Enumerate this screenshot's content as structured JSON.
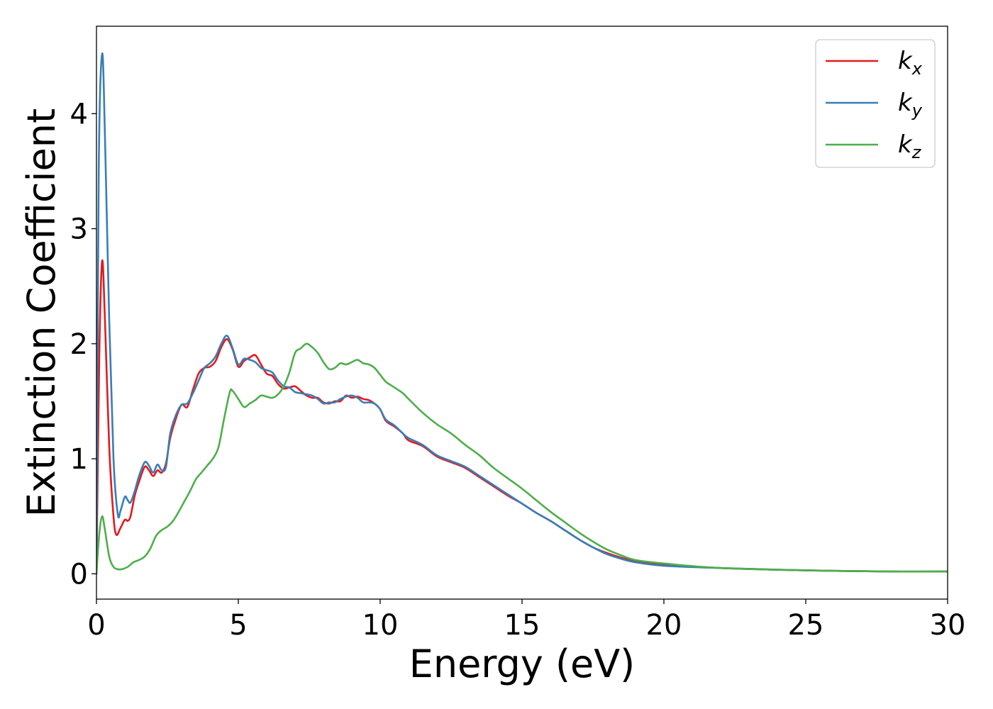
{
  "chart_data": {
    "type": "line",
    "title": "",
    "xlabel": "Energy (eV)",
    "ylabel": "Extinction Coefficient",
    "xlim": [
      0,
      30
    ],
    "ylim": [
      -0.22,
      4.76
    ],
    "xticks": [
      0,
      5,
      10,
      15,
      20,
      25,
      30
    ],
    "yticks": [
      0,
      1,
      2,
      3,
      4
    ],
    "grid": false,
    "legend_position": "top-right",
    "series": [
      {
        "name": "k_x",
        "legend_base": "k",
        "legend_sub": "x",
        "color": "#e41a1c",
        "points": [
          [
            0,
            0
          ],
          [
            0.1,
            1.9
          ],
          [
            0.2,
            2.72
          ],
          [
            0.3,
            2.2
          ],
          [
            0.45,
            1.1
          ],
          [
            0.6,
            0.5
          ],
          [
            0.7,
            0.34
          ],
          [
            0.85,
            0.4
          ],
          [
            1.0,
            0.47
          ],
          [
            1.1,
            0.46
          ],
          [
            1.2,
            0.5
          ],
          [
            1.35,
            0.68
          ],
          [
            1.5,
            0.8
          ],
          [
            1.7,
            0.93
          ],
          [
            1.85,
            0.9
          ],
          [
            2.0,
            0.85
          ],
          [
            2.15,
            0.9
          ],
          [
            2.3,
            0.88
          ],
          [
            2.45,
            0.96
          ],
          [
            2.6,
            1.18
          ],
          [
            2.8,
            1.35
          ],
          [
            3.0,
            1.47
          ],
          [
            3.2,
            1.45
          ],
          [
            3.4,
            1.6
          ],
          [
            3.6,
            1.74
          ],
          [
            3.8,
            1.79
          ],
          [
            4.0,
            1.8
          ],
          [
            4.2,
            1.85
          ],
          [
            4.4,
            1.97
          ],
          [
            4.6,
            2.04
          ],
          [
            4.8,
            1.95
          ],
          [
            5.0,
            1.8
          ],
          [
            5.2,
            1.85
          ],
          [
            5.4,
            1.88
          ],
          [
            5.6,
            1.9
          ],
          [
            5.8,
            1.82
          ],
          [
            6.0,
            1.74
          ],
          [
            6.2,
            1.72
          ],
          [
            6.4,
            1.65
          ],
          [
            6.6,
            1.61
          ],
          [
            6.8,
            1.62
          ],
          [
            7.0,
            1.63
          ],
          [
            7.2,
            1.59
          ],
          [
            7.4,
            1.55
          ],
          [
            7.6,
            1.53
          ],
          [
            7.8,
            1.53
          ],
          [
            8.0,
            1.49
          ],
          [
            8.2,
            1.48
          ],
          [
            8.4,
            1.5
          ],
          [
            8.6,
            1.5
          ],
          [
            8.8,
            1.55
          ],
          [
            9.0,
            1.53
          ],
          [
            9.2,
            1.54
          ],
          [
            9.4,
            1.52
          ],
          [
            9.6,
            1.51
          ],
          [
            9.8,
            1.48
          ],
          [
            10.0,
            1.43
          ],
          [
            10.2,
            1.33
          ],
          [
            10.5,
            1.28
          ],
          [
            10.8,
            1.22
          ],
          [
            11.0,
            1.16
          ],
          [
            11.5,
            1.11
          ],
          [
            12.0,
            1.02
          ],
          [
            12.5,
            0.97
          ],
          [
            13.0,
            0.92
          ],
          [
            13.5,
            0.84
          ],
          [
            14.0,
            0.76
          ],
          [
            14.5,
            0.68
          ],
          [
            15.0,
            0.61
          ],
          [
            15.5,
            0.53
          ],
          [
            16.0,
            0.46
          ],
          [
            16.5,
            0.38
          ],
          [
            17.0,
            0.3
          ],
          [
            17.5,
            0.23
          ],
          [
            18.0,
            0.18
          ],
          [
            18.5,
            0.14
          ],
          [
            19.0,
            0.11
          ],
          [
            20.0,
            0.08
          ],
          [
            22.0,
            0.05
          ],
          [
            25.0,
            0.03
          ],
          [
            28.0,
            0.02
          ],
          [
            30.0,
            0.02
          ]
        ]
      },
      {
        "name": "k_y",
        "legend_base": "k",
        "legend_sub": "y",
        "color": "#377eb8",
        "points": [
          [
            0,
            0
          ],
          [
            0.08,
            3.5
          ],
          [
            0.2,
            4.52
          ],
          [
            0.3,
            3.8
          ],
          [
            0.45,
            2.2
          ],
          [
            0.6,
            1.0
          ],
          [
            0.75,
            0.52
          ],
          [
            0.85,
            0.55
          ],
          [
            1.0,
            0.67
          ],
          [
            1.1,
            0.64
          ],
          [
            1.2,
            0.62
          ],
          [
            1.35,
            0.72
          ],
          [
            1.5,
            0.85
          ],
          [
            1.7,
            0.97
          ],
          [
            1.85,
            0.94
          ],
          [
            2.0,
            0.88
          ],
          [
            2.15,
            0.95
          ],
          [
            2.3,
            0.9
          ],
          [
            2.45,
            0.93
          ],
          [
            2.6,
            1.22
          ],
          [
            2.8,
            1.38
          ],
          [
            3.0,
            1.47
          ],
          [
            3.2,
            1.48
          ],
          [
            3.4,
            1.57
          ],
          [
            3.6,
            1.68
          ],
          [
            3.8,
            1.79
          ],
          [
            4.0,
            1.83
          ],
          [
            4.2,
            1.89
          ],
          [
            4.4,
            2.0
          ],
          [
            4.6,
            2.07
          ],
          [
            4.8,
            1.96
          ],
          [
            5.0,
            1.82
          ],
          [
            5.2,
            1.87
          ],
          [
            5.4,
            1.86
          ],
          [
            5.6,
            1.84
          ],
          [
            5.8,
            1.79
          ],
          [
            6.0,
            1.77
          ],
          [
            6.2,
            1.75
          ],
          [
            6.4,
            1.68
          ],
          [
            6.6,
            1.63
          ],
          [
            6.8,
            1.62
          ],
          [
            7.0,
            1.58
          ],
          [
            7.2,
            1.57
          ],
          [
            7.4,
            1.56
          ],
          [
            7.6,
            1.55
          ],
          [
            7.8,
            1.52
          ],
          [
            8.0,
            1.48
          ],
          [
            8.2,
            1.49
          ],
          [
            8.4,
            1.49
          ],
          [
            8.6,
            1.52
          ],
          [
            8.8,
            1.54
          ],
          [
            9.0,
            1.55
          ],
          [
            9.2,
            1.53
          ],
          [
            9.4,
            1.49
          ],
          [
            9.6,
            1.49
          ],
          [
            9.8,
            1.48
          ],
          [
            10.0,
            1.43
          ],
          [
            10.2,
            1.34
          ],
          [
            10.5,
            1.29
          ],
          [
            10.8,
            1.22
          ],
          [
            11.0,
            1.18
          ],
          [
            11.5,
            1.12
          ],
          [
            12.0,
            1.03
          ],
          [
            12.5,
            0.98
          ],
          [
            13.0,
            0.93
          ],
          [
            13.5,
            0.85
          ],
          [
            14.0,
            0.77
          ],
          [
            14.5,
            0.69
          ],
          [
            15.0,
            0.61
          ],
          [
            15.5,
            0.53
          ],
          [
            16.0,
            0.46
          ],
          [
            16.5,
            0.38
          ],
          [
            17.0,
            0.3
          ],
          [
            17.5,
            0.23
          ],
          [
            18.0,
            0.17
          ],
          [
            18.5,
            0.13
          ],
          [
            19.0,
            0.1
          ],
          [
            20.0,
            0.07
          ],
          [
            22.0,
            0.05
          ],
          [
            25.0,
            0.03
          ],
          [
            28.0,
            0.02
          ],
          [
            30.0,
            0.02
          ]
        ]
      },
      {
        "name": "k_z",
        "legend_base": "k",
        "legend_sub": "z",
        "color": "#4daf4a",
        "points": [
          [
            0,
            0
          ],
          [
            0.1,
            0.35
          ],
          [
            0.2,
            0.5
          ],
          [
            0.3,
            0.38
          ],
          [
            0.45,
            0.15
          ],
          [
            0.6,
            0.06
          ],
          [
            0.75,
            0.04
          ],
          [
            0.9,
            0.04
          ],
          [
            1.1,
            0.06
          ],
          [
            1.3,
            0.1
          ],
          [
            1.5,
            0.12
          ],
          [
            1.7,
            0.15
          ],
          [
            1.9,
            0.22
          ],
          [
            2.1,
            0.33
          ],
          [
            2.3,
            0.38
          ],
          [
            2.5,
            0.41
          ],
          [
            2.7,
            0.46
          ],
          [
            2.9,
            0.54
          ],
          [
            3.1,
            0.63
          ],
          [
            3.3,
            0.72
          ],
          [
            3.5,
            0.82
          ],
          [
            3.7,
            0.88
          ],
          [
            3.9,
            0.94
          ],
          [
            4.1,
            1.0
          ],
          [
            4.3,
            1.1
          ],
          [
            4.5,
            1.35
          ],
          [
            4.7,
            1.58
          ],
          [
            4.8,
            1.59
          ],
          [
            5.0,
            1.52
          ],
          [
            5.2,
            1.45
          ],
          [
            5.4,
            1.48
          ],
          [
            5.6,
            1.51
          ],
          [
            5.8,
            1.55
          ],
          [
            6.0,
            1.54
          ],
          [
            6.2,
            1.53
          ],
          [
            6.4,
            1.56
          ],
          [
            6.6,
            1.63
          ],
          [
            6.8,
            1.75
          ],
          [
            7.0,
            1.92
          ],
          [
            7.2,
            1.96
          ],
          [
            7.4,
            2.0
          ],
          [
            7.6,
            1.97
          ],
          [
            7.8,
            1.92
          ],
          [
            8.0,
            1.84
          ],
          [
            8.2,
            1.78
          ],
          [
            8.4,
            1.79
          ],
          [
            8.6,
            1.83
          ],
          [
            8.8,
            1.82
          ],
          [
            9.0,
            1.84
          ],
          [
            9.2,
            1.86
          ],
          [
            9.4,
            1.83
          ],
          [
            9.6,
            1.82
          ],
          [
            9.8,
            1.79
          ],
          [
            10.0,
            1.73
          ],
          [
            10.2,
            1.67
          ],
          [
            10.5,
            1.62
          ],
          [
            10.8,
            1.57
          ],
          [
            11.0,
            1.52
          ],
          [
            11.5,
            1.4
          ],
          [
            12.0,
            1.3
          ],
          [
            12.5,
            1.22
          ],
          [
            13.0,
            1.12
          ],
          [
            13.5,
            1.03
          ],
          [
            14.0,
            0.92
          ],
          [
            14.5,
            0.83
          ],
          [
            15.0,
            0.74
          ],
          [
            15.5,
            0.64
          ],
          [
            16.0,
            0.54
          ],
          [
            16.5,
            0.45
          ],
          [
            17.0,
            0.36
          ],
          [
            17.5,
            0.28
          ],
          [
            18.0,
            0.21
          ],
          [
            18.5,
            0.16
          ],
          [
            19.0,
            0.12
          ],
          [
            20.0,
            0.09
          ],
          [
            22.0,
            0.05
          ],
          [
            25.0,
            0.03
          ],
          [
            28.0,
            0.02
          ],
          [
            30.0,
            0.02
          ]
        ]
      }
    ]
  }
}
